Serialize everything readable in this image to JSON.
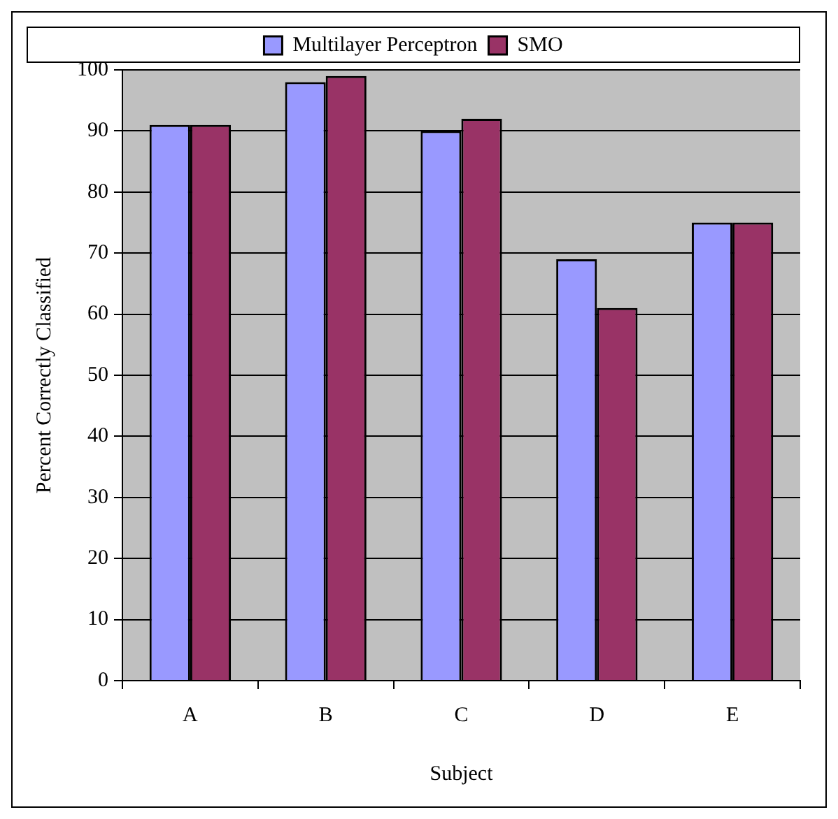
{
  "chart_data": {
    "type": "bar",
    "xlabel": "Subject",
    "ylabel": "Percent Correctly Classified",
    "categories": [
      "A",
      "B",
      "C",
      "D",
      "E"
    ],
    "series": [
      {
        "name": "Multilayer Perceptron",
        "color": "#9999ff",
        "values": [
          91,
          98,
          90,
          69,
          75
        ]
      },
      {
        "name": "SMO",
        "color": "#993366",
        "values": [
          91,
          99,
          92,
          61,
          75
        ]
      }
    ],
    "ylim": [
      0,
      100
    ],
    "yticks": [
      0,
      10,
      20,
      30,
      40,
      50,
      60,
      70,
      80,
      90,
      100
    ],
    "grid": "y",
    "legend": "top"
  }
}
